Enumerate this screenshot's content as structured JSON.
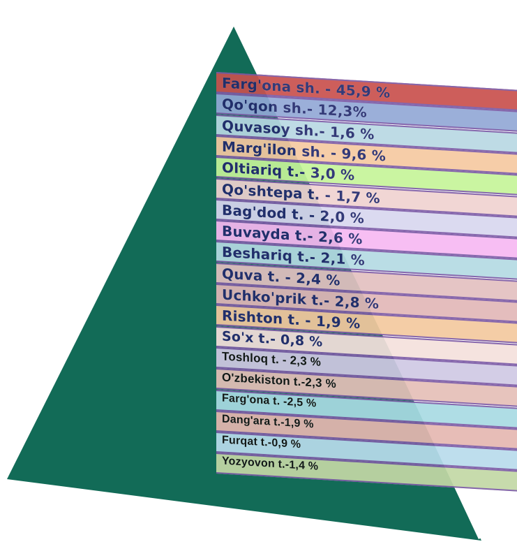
{
  "shape": {
    "triangle_color": "#126b57",
    "stripe_color": "#ffffff",
    "band_border_color": "#7b5aa6"
  },
  "districts": [
    {
      "label": "Farg'ona sh. - 45,9 %",
      "value": 45.9,
      "color": "#c9514e",
      "text_color": "#232a6d"
    },
    {
      "label": "Qo'qon sh.- 12,3%",
      "value": 12.3,
      "color": "#93a9d6",
      "text_color": "#232a6d"
    },
    {
      "label": "Quvasoy sh.- 1,6 %",
      "value": 1.6,
      "color": "#b9d9e3",
      "text_color": "#232a6d"
    },
    {
      "label": "Marg'ilon sh. - 9,6 %",
      "value": 9.6,
      "color": "#f6c9a1",
      "text_color": "#232a6d"
    },
    {
      "label": "Oltiariq t.- 3,0 %",
      "value": 3.0,
      "color": "#c6f59a",
      "text_color": "#232a6d"
    },
    {
      "label": "Qo'shtepa t. - 1,7 %",
      "value": 1.7,
      "color": "#f0d3d1",
      "text_color": "#232a6d"
    },
    {
      "label": "Bag'dod t. - 2,0 %",
      "value": 2.0,
      "color": "#d9d7ef",
      "text_color": "#232a6d"
    },
    {
      "label": "Buvayda t.- 2,6 %",
      "value": 2.6,
      "color": "#f7b9f2",
      "text_color": "#232a6d"
    },
    {
      "label": "Beshariq t.- 2,1 %",
      "value": 2.1,
      "color": "#b5dbe3",
      "text_color": "#232a6d"
    },
    {
      "label": "Quva t.  - 2,4 %",
      "value": 2.4,
      "color": "#e3c1c1",
      "text_color": "#232a6d"
    },
    {
      "label": "Uchko'prik t.- 2,8 %",
      "value": 2.8,
      "color": "#e2b8b8",
      "text_color": "#232a6d"
    },
    {
      "label": "Rishton t. - 1,9 %",
      "value": 1.9,
      "color": "#f4c99f",
      "text_color": "#232a6d"
    },
    {
      "label": "So'x t.- 0,8 %",
      "value": 0.8,
      "color": "#f5e1dd",
      "text_color": "#232a6d"
    },
    {
      "label": "Toshloq t. - 2,3  %",
      "value": 2.3,
      "color": "#d0c9e4",
      "text_color": "#111111"
    },
    {
      "label": "O'zbekiston t.-2,3 %",
      "value": 2.3,
      "color": "#e5c0b8",
      "text_color": "#111111"
    },
    {
      "label": "Farg'ona t. -2,5 %",
      "value": 2.5,
      "color": "#a9dbe3",
      "text_color": "#111111"
    },
    {
      "label": "Dang'ara t.-1,9  %",
      "value": 1.9,
      "color": "#e6b8b1",
      "text_color": "#111111"
    },
    {
      "label": "Furqat t.-0,9 %",
      "value": 0.9,
      "color": "#b9dcec",
      "text_color": "#111111"
    },
    {
      "label": "Yozyovon t.-1,4 %",
      "value": 1.4,
      "color": "#c3d8a6",
      "text_color": "#111111"
    }
  ]
}
